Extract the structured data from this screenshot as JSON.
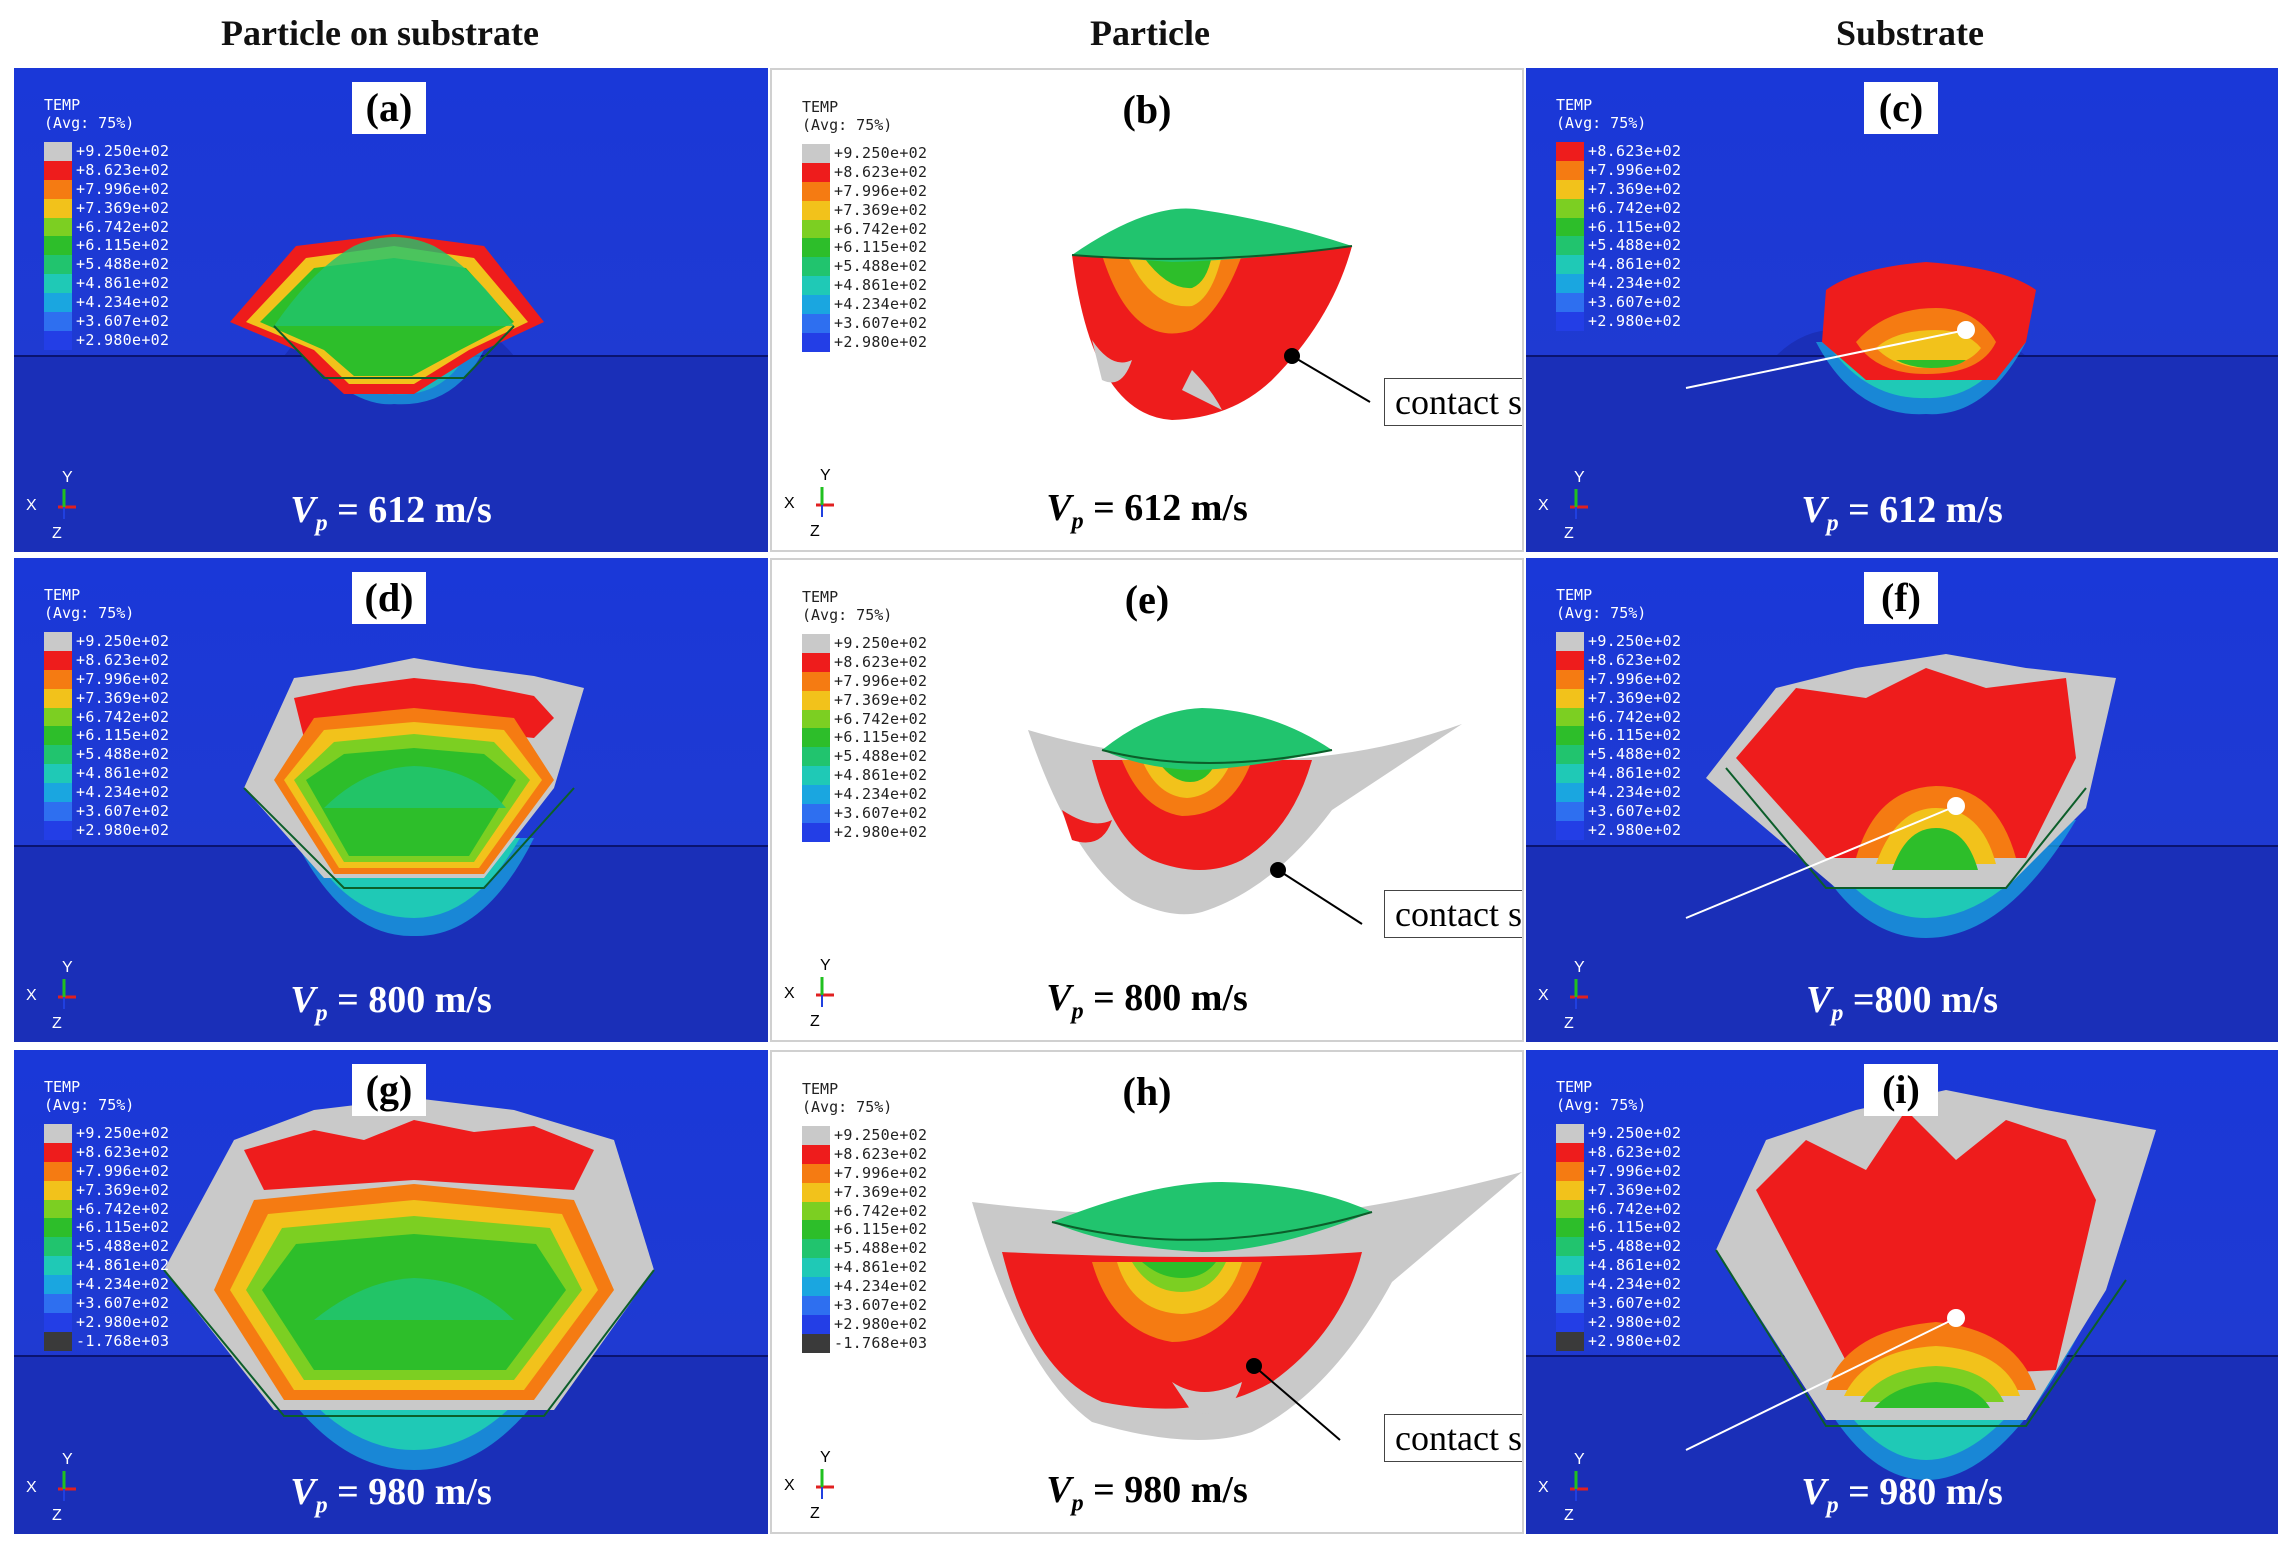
{
  "headers": {
    "col1": "Particle on substrate",
    "col2": "Particle",
    "col3": "Substrate"
  },
  "legend": {
    "title": "TEMP",
    "subtitle": "(Avg: 75%)",
    "labels_std": [
      "+9.250e+02",
      "+8.623e+02",
      "+7.996e+02",
      "+7.369e+02",
      "+6.742e+02",
      "+6.115e+02",
      "+5.488e+02",
      "+4.861e+02",
      "+4.234e+02",
      "+3.607e+02",
      "+2.980e+02"
    ],
    "labels_c": [
      "+8.623e+02",
      "+7.996e+02",
      "+7.369e+02",
      "+6.742e+02",
      "+6.115e+02",
      "+5.488e+02",
      "+4.861e+02",
      "+4.234e+02",
      "+3.607e+02",
      "+2.980e+02"
    ],
    "labels_980": [
      "+9.250e+02",
      "+8.623e+02",
      "+7.996e+02",
      "+7.369e+02",
      "+6.742e+02",
      "+6.115e+02",
      "+5.488e+02",
      "+4.861e+02",
      "+4.234e+02",
      "+3.607e+02",
      "+2.980e+02",
      "-1.768e+03"
    ],
    "labels_i": [
      "+9.250e+02",
      "+8.623e+02",
      "+7.996e+02",
      "+7.369e+02",
      "+6.742e+02",
      "+6.115e+02",
      "+5.488e+02",
      "+4.861e+02",
      "+4.234e+02",
      "+3.607e+02",
      "+2.980e+02",
      "+2.980e+02"
    ],
    "colors_std": [
      "#c9c9c9",
      "#ee1c1c",
      "#f57b12",
      "#f2c21b",
      "#7ccf22",
      "#2dbe2a",
      "#21c46e",
      "#1fc9b6",
      "#1aa6e0",
      "#2e6ff0",
      "#233ee6"
    ],
    "colors_c": [
      "#ee1c1c",
      "#f57b12",
      "#f2c21b",
      "#7ccf22",
      "#2dbe2a",
      "#21c46e",
      "#1fc9b6",
      "#1aa6e0",
      "#2e6ff0",
      "#233ee6"
    ],
    "colors_980": [
      "#c9c9c9",
      "#ee1c1c",
      "#f57b12",
      "#f2c21b",
      "#7ccf22",
      "#2dbe2a",
      "#21c46e",
      "#1fc9b6",
      "#1aa6e0",
      "#2e6ff0",
      "#233ee6",
      "#3a3a3a"
    ],
    "colors_i": [
      "#c9c9c9",
      "#ee1c1c",
      "#f57b12",
      "#f2c21b",
      "#7ccf22",
      "#2dbe2a",
      "#21c46e",
      "#1fc9b6",
      "#1aa6e0",
      "#2e6ff0",
      "#233ee6",
      "#3a3a3a"
    ]
  },
  "triad": {
    "x": "X",
    "y": "Y",
    "z": "Z"
  },
  "contact_label": "contact surfaces",
  "panels": {
    "a": {
      "tag": "(a)",
      "v_prefix": "V",
      "v_sub": "p",
      "v_value": " = 612 m/s"
    },
    "b": {
      "tag": "(b)",
      "v_prefix": "V",
      "v_sub": "p",
      "v_value": " = 612 m/s"
    },
    "c": {
      "tag": "(c)",
      "v_prefix": "V",
      "v_sub": "p",
      "v_value": " = 612 m/s"
    },
    "d": {
      "tag": "(d)",
      "v_prefix": "V",
      "v_sub": "p",
      "v_value": " = 800 m/s"
    },
    "e": {
      "tag": "(e)",
      "v_prefix": "V",
      "v_sub": "p",
      "v_value": " = 800 m/s"
    },
    "f": {
      "tag": "(f)",
      "v_prefix": "V",
      "v_sub": "p",
      "v_value": " =800 m/s"
    },
    "g": {
      "tag": "(g)",
      "v_prefix": "V",
      "v_sub": "p",
      "v_value": " = 980 m/s"
    },
    "h": {
      "tag": "(h)",
      "v_prefix": "V",
      "v_sub": "p",
      "v_value": " = 980 m/s"
    },
    "i": {
      "tag": "(i)",
      "v_prefix": "V",
      "v_sub": "p",
      "v_value": " = 980 m/s"
    }
  },
  "colors": {
    "substrate_blue": "#1f3ad2",
    "red": "#ee1c1c",
    "green": "#2dbe2a",
    "teal": "#21c46e",
    "grey": "#c9c9c9"
  }
}
